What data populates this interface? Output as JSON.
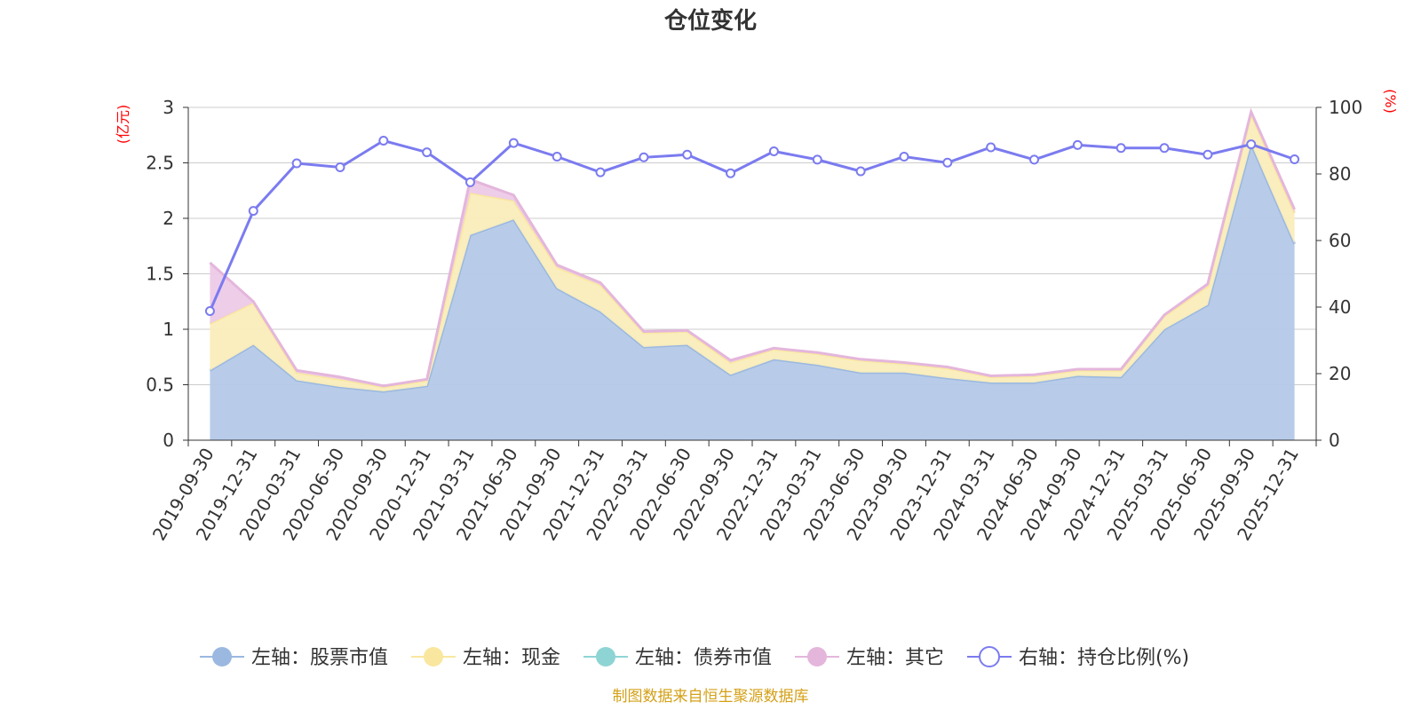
{
  "chart_data": {
    "type": "area",
    "title": "仓位变化",
    "categories": [
      "2019-09-30",
      "2019-12-31",
      "2020-03-31",
      "2020-06-30",
      "2020-09-30",
      "2020-12-31",
      "2021-03-31",
      "2021-06-30",
      "2021-09-30",
      "2021-12-31",
      "2022-03-31",
      "2022-06-30",
      "2022-09-30",
      "2022-12-31",
      "2023-03-31",
      "2023-06-30",
      "2023-09-30",
      "2023-12-31",
      "2024-03-31",
      "2024-06-30",
      "2024-09-30",
      "2024-12-31",
      "2025-03-31",
      "2025-06-30",
      "2025-09-30",
      "2025-12-31"
    ],
    "left_axis": {
      "unit": "(亿元)",
      "ylim": [
        0,
        3
      ],
      "ticks": [
        "0",
        "0.5",
        "1",
        "1.5",
        "2",
        "2.5",
        "3"
      ]
    },
    "right_axis": {
      "unit": "(%)",
      "ylim": [
        0,
        100
      ],
      "ticks": [
        "0",
        "20",
        "40",
        "60",
        "80",
        "100"
      ]
    },
    "series": [
      {
        "name": "左轴：股票市值",
        "axis": "left",
        "stack": true,
        "color": "#9bb8e0",
        "fill": "#b4c9e8",
        "values": [
          0.63,
          0.86,
          0.54,
          0.48,
          0.44,
          0.49,
          1.85,
          1.99,
          1.37,
          1.16,
          0.84,
          0.86,
          0.59,
          0.73,
          0.68,
          0.61,
          0.61,
          0.56,
          0.52,
          0.52,
          0.58,
          0.57,
          1.0,
          1.22,
          2.67,
          1.77
        ]
      },
      {
        "name": "左轴：现金",
        "axis": "left",
        "stack": true,
        "color": "#f9e79f",
        "fill": "#faedbb",
        "values": [
          0.42,
          0.38,
          0.07,
          0.07,
          0.04,
          0.05,
          0.38,
          0.17,
          0.19,
          0.24,
          0.13,
          0.12,
          0.11,
          0.09,
          0.1,
          0.11,
          0.08,
          0.09,
          0.05,
          0.06,
          0.05,
          0.06,
          0.12,
          0.17,
          0.27,
          0.28
        ]
      },
      {
        "name": "左轴：债券市值",
        "axis": "left",
        "stack": true,
        "color": "#8fd4d4",
        "fill": "#b7e4e4",
        "values": [
          0,
          0,
          0,
          0,
          0,
          0,
          0,
          0,
          0,
          0,
          0,
          0,
          0,
          0,
          0,
          0,
          0,
          0,
          0,
          0,
          0,
          0,
          0,
          0,
          0,
          0
        ]
      },
      {
        "name": "左轴：其它",
        "axis": "left",
        "stack": true,
        "color": "#e4b6dc",
        "fill": "#edcae8",
        "values": [
          0.55,
          0.01,
          0.02,
          0.02,
          0.01,
          0.01,
          0.12,
          0.05,
          0.02,
          0.02,
          0.01,
          0.01,
          0.02,
          0.01,
          0.01,
          0.01,
          0.01,
          0.01,
          0.01,
          0.01,
          0.01,
          0.01,
          0.01,
          0.02,
          0.02,
          0.03
        ]
      },
      {
        "name": "右轴：持仓比例(%)",
        "axis": "right",
        "stack": false,
        "color": "#7b7bf0",
        "values": [
          38.8,
          68.9,
          83.2,
          82.0,
          90.0,
          86.5,
          77.5,
          89.3,
          85.2,
          80.5,
          85.0,
          85.8,
          80.2,
          86.8,
          84.3,
          80.8,
          85.2,
          83.4,
          88.0,
          84.3,
          88.7,
          87.8,
          87.8,
          85.8,
          88.9,
          84.4
        ]
      }
    ]
  },
  "footer": {
    "source": "制图数据来自恒生聚源数据库"
  }
}
